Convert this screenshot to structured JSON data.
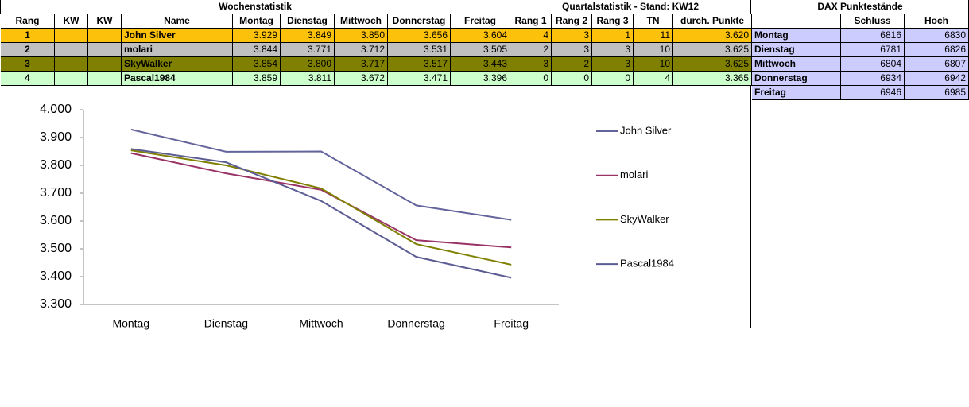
{
  "table": {
    "title": "Wochenstatistik",
    "quarter_title": "Quartalstatistik - Stand: KW12",
    "header": [
      "Rang",
      "KW",
      "KW",
      "Name",
      "Montag",
      "Dienstag",
      "Mittwoch",
      "Donnerstag",
      "Freitag",
      "Rang 1",
      "Rang 2",
      "Rang 3",
      "TN",
      "durch. Punkte"
    ],
    "rows": [
      [
        "1",
        null,
        null,
        "John Silver",
        "3.929",
        "3.849",
        "3.850",
        "3.656",
        "3.604",
        "4",
        "3",
        "1",
        "11",
        "3.620"
      ],
      [
        "2",
        null,
        null,
        "molari",
        "3.844",
        "3.771",
        "3.712",
        "3.531",
        "3.505",
        "2",
        "3",
        "3",
        "10",
        "3.625"
      ],
      [
        "3",
        null,
        null,
        "SkyWalker",
        "3.854",
        "3.800",
        "3.717",
        "3.517",
        "3.443",
        "3",
        "2",
        "3",
        "10",
        "3.625"
      ],
      [
        "4",
        null,
        null,
        "Pascal1984",
        "3.859",
        "3.811",
        "3.672",
        "3.471",
        "3.396",
        "0",
        "0",
        "0",
        "4",
        "3.365"
      ]
    ]
  },
  "dax": {
    "title": "DAX Punktestände",
    "header": [
      "Schluss",
      "Hoch"
    ],
    "rows": [
      [
        "Montag",
        "6816",
        "6830"
      ],
      [
        "Dienstag",
        "6781",
        "6826"
      ],
      [
        "Mittwoch",
        "6804",
        "6807"
      ],
      [
        "Donnerstag",
        "6934",
        "6942"
      ],
      [
        "Freitag",
        "6946",
        "6985"
      ]
    ]
  },
  "chart_data": {
    "type": "line",
    "categories": [
      "Montag",
      "Dienstag",
      "Mittwoch",
      "Donnerstag",
      "Freitag"
    ],
    "series": [
      {
        "name": "John Silver",
        "color": "#64649c",
        "values": [
          3.929,
          3.849,
          3.85,
          3.656,
          3.604
        ]
      },
      {
        "name": "molari",
        "color": "#993366",
        "values": [
          3.844,
          3.771,
          3.712,
          3.531,
          3.505
        ]
      },
      {
        "name": "SkyWalker",
        "color": "#808000",
        "values": [
          3.854,
          3.8,
          3.717,
          3.517,
          3.443
        ]
      },
      {
        "name": "Pascal1984",
        "color": "#5c5c94",
        "values": [
          3.859,
          3.811,
          3.672,
          3.471,
          3.396
        ]
      }
    ],
    "ylim": [
      3.3,
      4.0
    ],
    "yticks": [
      {
        "value": 3.3,
        "label": "3.300"
      },
      {
        "value": 3.4,
        "label": "3.400"
      },
      {
        "value": 3.5,
        "label": "3.500"
      },
      {
        "value": 3.6,
        "label": "3.600"
      },
      {
        "value": 3.7,
        "label": "3.700"
      },
      {
        "value": 3.8,
        "label": "3.800"
      },
      {
        "value": 3.9,
        "label": "3.900"
      },
      {
        "value": 4.0,
        "label": "4.000"
      }
    ],
    "grid": false,
    "legend": "right"
  }
}
